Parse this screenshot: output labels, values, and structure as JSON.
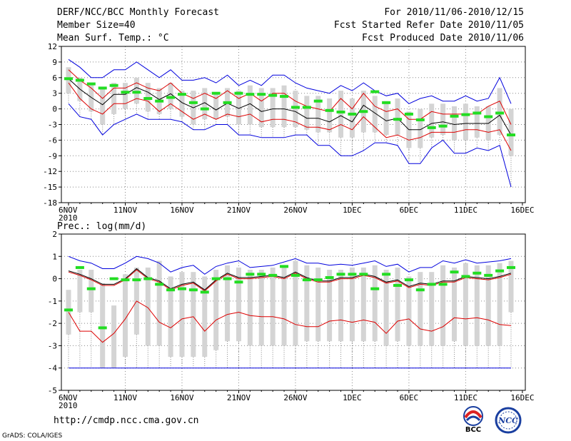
{
  "header": {
    "title": "DERF/NCC/BCC Monthly Forecast",
    "member_size": "Member Size=40",
    "variable": "Mean Surf. Temp.: °C",
    "forecast_period": "For 2010/11/06-2010/12/15",
    "start_date": "Fcst Started Refer Date 2010/11/05",
    "produced_date": "Fcst Produced Date 2010/11/06"
  },
  "precip_label": "Prec.: log(mm/d)",
  "footer": {
    "url": "http://cmdp.ncc.cma.gov.cn",
    "credit": "GrADS: COLA/IGES",
    "logo_left_text": "BCC",
    "logo_right_text": "NCC"
  },
  "colors": {
    "envelope": "#0000dd",
    "spread": "#dd0000",
    "mean": "#000000",
    "box": "#d4d4d4",
    "obs": "#22dd22"
  },
  "chart_data": [
    {
      "type": "box",
      "title": "Mean Surf. Temp.: °C",
      "x_ticks": [
        "6NOV\n2010",
        "11NOV",
        "16NOV",
        "21NOV",
        "26NOV",
        "1DEC",
        "6DEC",
        "11DEC",
        "16DEC"
      ],
      "ylim": [
        -18,
        12
      ],
      "y_ticks": [
        12,
        9,
        6,
        3,
        0,
        -3,
        -6,
        -9,
        -12,
        -15,
        -18
      ],
      "days": 40,
      "series": [
        {
          "name": "max",
          "values": [
            9.5,
            8,
            6,
            6,
            7.5,
            7.5,
            9,
            7.5,
            6,
            7.5,
            5.5,
            5.5,
            6,
            5,
            6.5,
            4.5,
            5.5,
            4.5,
            6.5,
            6.5,
            5,
            4,
            3.5,
            3,
            4.5,
            3.5,
            5,
            3.5,
            2.5,
            3,
            1,
            2,
            2.5,
            1.5,
            1.5,
            2.5,
            1.5,
            2,
            6,
            1
          ]
        },
        {
          "name": "upper",
          "values": [
            7.5,
            5.5,
            4,
            2,
            4,
            4,
            5,
            4,
            3.5,
            5,
            3,
            2,
            3,
            2,
            3.5,
            2,
            3,
            1.5,
            3,
            3,
            1.5,
            0.5,
            0,
            -0.5,
            2,
            0,
            3,
            0.5,
            -0.5,
            0,
            -2,
            -2,
            -0.5,
            -1,
            -1,
            -1,
            -1,
            0.5,
            1.5,
            -3
          ]
        },
        {
          "name": "mean",
          "values": [
            5.8,
            3.8,
            2.2,
            0.8,
            2.8,
            2.8,
            4.1,
            3.2,
            1.8,
            2.9,
            1.2,
            0.2,
            1.2,
            -0.2,
            1.1,
            0.1,
            1,
            -0.5,
            0,
            0,
            -0.5,
            -1.8,
            -1.8,
            -2.5,
            -1.3,
            -2.5,
            0.7,
            -0.8,
            -2.3,
            -1.8,
            -4,
            -4,
            -2.8,
            -2.5,
            -3,
            -2.8,
            -2.8,
            -2.8,
            -1.2,
            -5
          ]
        },
        {
          "name": "lower",
          "values": [
            5,
            2,
            0,
            -1,
            1,
            1,
            2,
            1.5,
            -0.5,
            1,
            -0.5,
            -2,
            -1,
            -2,
            -1,
            -1.5,
            -1,
            -2.5,
            -2,
            -2,
            -2.5,
            -3.5,
            -3.5,
            -4,
            -3,
            -4,
            -1.5,
            -3.5,
            -5.5,
            -5,
            -6,
            -5.5,
            -4.5,
            -4.5,
            -4.5,
            -4,
            -4,
            -4.5,
            -4,
            -8
          ]
        },
        {
          "name": "min",
          "values": [
            1,
            -1.5,
            -2,
            -5,
            -3,
            -2,
            -1,
            -2,
            -2,
            -2,
            -2.5,
            -4,
            -4,
            -3,
            -3,
            -5,
            -5,
            -5.5,
            -5.5,
            -5.5,
            -5,
            -5,
            -7,
            -7,
            -9,
            -9,
            -8,
            -6.5,
            -6.5,
            -7,
            -10.5,
            -10.5,
            -7.5,
            -6,
            -8.5,
            -8.5,
            -7.5,
            -8,
            -7,
            -15
          ]
        },
        {
          "name": "box_top",
          "values": [
            8,
            6,
            5,
            4,
            5,
            5,
            6,
            5,
            4,
            5,
            3.5,
            3.5,
            4,
            3,
            4,
            3.5,
            4.5,
            4,
            4,
            4.5,
            3.5,
            2.5,
            2.5,
            2,
            3.5,
            2,
            3.5,
            2.5,
            1.5,
            2,
            -0.5,
            0,
            1,
            1,
            0.5,
            1,
            0.5,
            0.5,
            4,
            0
          ]
        },
        {
          "name": "box_bottom",
          "values": [
            3,
            1.5,
            -0.5,
            -3,
            -1,
            0,
            1,
            -0.5,
            -1,
            0,
            -1.5,
            -3,
            -2,
            -2,
            -1.5,
            -3,
            -3,
            -3.5,
            -3.5,
            -3.5,
            -3.5,
            -4,
            -4.5,
            -4.5,
            -5.5,
            -5.5,
            -4.5,
            -4.5,
            -5,
            -5,
            -7.5,
            -7.5,
            -5.5,
            -5,
            -6,
            -6,
            -5.5,
            -6,
            -5,
            -9
          ]
        },
        {
          "name": "observed",
          "values": [
            5.8,
            5.5,
            4.8,
            4,
            4.5,
            3.2,
            3.2,
            2,
            1.5,
            2.2,
            2.8,
            1.2,
            0,
            3,
            1.2,
            3,
            2.8,
            2.8,
            2.6,
            2.4,
            0.3,
            0.3,
            1.5,
            -0.3,
            -0.6,
            -1,
            -0.5,
            3.3,
            1.2,
            -2,
            -1,
            -2.1,
            -3.6,
            -3.3,
            -1.4,
            -1.1,
            -0.8,
            -1.5,
            -0.8,
            -5
          ]
        }
      ]
    },
    {
      "type": "box",
      "title": "Prec.: log(mm/d)",
      "x_ticks": [
        "6NOV\n2010",
        "11NOV",
        "16NOV",
        "21NOV",
        "26NOV",
        "1DEC",
        "6DEC",
        "11DEC",
        "16DEC"
      ],
      "ylim": [
        -5,
        2
      ],
      "y_ticks": [
        2,
        1,
        0,
        -1,
        -2,
        -3,
        -4,
        -5
      ],
      "days": 40,
      "series": [
        {
          "name": "max",
          "values": [
            1,
            0.8,
            0.7,
            0.45,
            0.45,
            0.7,
            1,
            0.9,
            0.7,
            0.3,
            0.5,
            0.6,
            0.2,
            0.55,
            0.7,
            0.8,
            0.5,
            0.55,
            0.6,
            0.75,
            0.9,
            0.7,
            0.7,
            0.6,
            0.65,
            0.6,
            0.7,
            0.8,
            0.55,
            0.65,
            0.3,
            0.5,
            0.5,
            0.8,
            0.7,
            0.85,
            0.7,
            0.75,
            0.8,
            0.9
          ]
        },
        {
          "name": "mean",
          "values": [
            0.35,
            0.2,
            0,
            -0.25,
            -0.25,
            0,
            0.45,
            0.05,
            -0.1,
            -0.45,
            -0.25,
            -0.15,
            -0.5,
            -0.05,
            0.25,
            0.05,
            0.05,
            0.1,
            0.15,
            0.05,
            0.3,
            0.05,
            -0.1,
            -0.1,
            0.05,
            0.05,
            0.2,
            0.1,
            -0.15,
            -0.05,
            -0.35,
            -0.2,
            -0.25,
            -0.1,
            -0.1,
            0.1,
            0.05,
            0,
            0.1,
            0.25
          ]
        },
        {
          "name": "upper",
          "values": [
            0.3,
            0.15,
            -0.05,
            -0.3,
            -0.3,
            -0.05,
            0.4,
            0,
            -0.15,
            -0.5,
            -0.3,
            -0.2,
            -0.55,
            -0.1,
            0.2,
            0,
            0,
            0.05,
            0.1,
            0,
            0.25,
            0,
            -0.15,
            -0.15,
            0,
            0,
            0.15,
            0.05,
            -0.2,
            -0.1,
            -0.4,
            -0.25,
            -0.3,
            -0.15,
            -0.15,
            0.05,
            0,
            -0.05,
            0.05,
            0.2
          ]
        },
        {
          "name": "lower",
          "values": [
            -1.5,
            -2.35,
            -2.35,
            -2.85,
            -2.45,
            -1.8,
            -1.0,
            -1.3,
            -1.95,
            -2.2,
            -1.8,
            -1.7,
            -2.35,
            -1.85,
            -1.6,
            -1.5,
            -1.65,
            -1.7,
            -1.7,
            -1.8,
            -2.05,
            -2.15,
            -2.15,
            -1.9,
            -1.85,
            -1.95,
            -1.85,
            -1.95,
            -2.45,
            -1.9,
            -1.8,
            -2.25,
            -2.35,
            -2.15,
            -1.75,
            -1.8,
            -1.75,
            -1.85,
            -2.05,
            -2.1
          ]
        },
        {
          "name": "min",
          "values": [
            -4,
            -4,
            -4,
            -4,
            -4,
            -4,
            -4,
            -4,
            -4,
            -4,
            -4,
            -4,
            -4,
            -4,
            -4,
            -4,
            -4,
            -4,
            -4,
            -4,
            -4,
            -4,
            -4,
            -4,
            -4,
            -4,
            -4,
            -4,
            -4,
            -4,
            -4,
            -4,
            -4,
            -4,
            -4,
            -4,
            -4,
            -4,
            -4,
            -4
          ]
        },
        {
          "name": "box_top",
          "values": [
            -0.5,
            0.4,
            0.4,
            -0.2,
            -1.2,
            0.2,
            0.5,
            0.5,
            0.8,
            0.1,
            0.3,
            0.3,
            0.1,
            0.4,
            0.6,
            0.5,
            0.4,
            0.4,
            0.5,
            0.6,
            0.8,
            0.6,
            0.5,
            0.4,
            0.4,
            0.5,
            0.5,
            0.6,
            0.4,
            0.5,
            0.1,
            0.3,
            0.3,
            0.6,
            0.5,
            0.7,
            0.6,
            0.6,
            0.7,
            0.8
          ]
        },
        {
          "name": "box_bottom",
          "values": [
            -2.5,
            -1.5,
            -1.5,
            -4,
            -4,
            -3.5,
            -2.5,
            -3,
            -3,
            -3.5,
            -3.5,
            -3.5,
            -3.5,
            -3.2,
            -2.8,
            -2.8,
            -3,
            -3,
            -3,
            -3,
            -3,
            -2.8,
            -2.8,
            -2.8,
            -2.8,
            -2.8,
            -2.8,
            -2.8,
            -3,
            -2.8,
            -3,
            -3,
            -3,
            -3,
            -2.8,
            -3,
            -3,
            -3,
            -3,
            -1.5
          ]
        },
        {
          "name": "observed",
          "values": [
            -1.4,
            0.5,
            -0.45,
            -2.2,
            0,
            -0.05,
            -0.05,
            0,
            -0.25,
            -0.5,
            -0.45,
            -0.5,
            -0.6,
            0,
            0,
            -0.15,
            0.2,
            0.2,
            0.15,
            0.55,
            0.15,
            -0.05,
            -0.05,
            0.05,
            0.2,
            0.2,
            0.2,
            -0.45,
            0.2,
            -0.3,
            -0.05,
            -0.5,
            -0.25,
            -0.25,
            0.3,
            0.1,
            0.25,
            0.15,
            0.35,
            0.5
          ]
        }
      ]
    }
  ]
}
